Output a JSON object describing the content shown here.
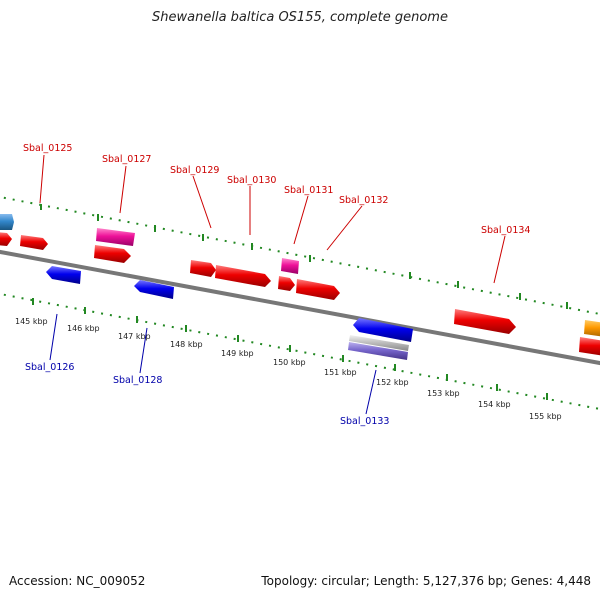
{
  "title": "Shewanella baltica OS155, complete genome",
  "footer": {
    "accession": "Accession: NC_009052",
    "summary": "Topology: circular; Length: 5,127,376 bp; Genes: 4,448"
  },
  "scale_labels": [
    "145 kbp",
    "146 kbp",
    "147 kbp",
    "148 kbp",
    "149 kbp",
    "150 kbp",
    "151 kbp",
    "152 kbp",
    "153 kbp",
    "154 kbp",
    "155 kbp"
  ],
  "gene_labels": {
    "forward": [
      "Sbal_0125",
      "Sbal_0127",
      "Sbal_0129",
      "Sbal_0130",
      "Sbal_0131",
      "Sbal_0132",
      "Sbal_0134"
    ],
    "reverse": [
      "Sbal_0126",
      "Sbal_0128",
      "Sbal_0133"
    ]
  },
  "colors": {
    "forward_gene": "#ee0000",
    "reverse_gene": "#0000ee",
    "rna_gene": "#ee1199",
    "other_gene": "#3388cc",
    "orange_gene": "#ff9900",
    "tick": "#228822",
    "backbone": "#777777",
    "forward_label": "#cc0000",
    "reverse_label": "#0000aa"
  }
}
